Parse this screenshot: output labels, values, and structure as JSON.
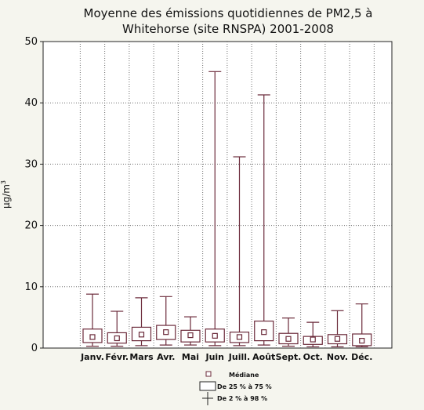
{
  "chart_data": {
    "type": "box",
    "title_lines": [
      "Moyenne des émissions quotidiennes de PM2,5 à",
      "Whitehorse (site RNSPA) 2001-2008"
    ],
    "ylabel": "µg/m",
    "ylabel_sup": "3",
    "ylim": [
      0,
      50
    ],
    "yticks": [
      "0",
      "10",
      "20",
      "30",
      "40",
      "50"
    ],
    "grid": true,
    "categories": [
      "Janv.",
      "Févr.",
      "Mars",
      "Avr.",
      "Mai",
      "Juin",
      "Juill.",
      "Août",
      "Sept.",
      "Oct.",
      "Nov.",
      "Déc."
    ],
    "median": [
      1.8,
      1.6,
      2.2,
      2.6,
      2.1,
      2.0,
      1.8,
      2.6,
      1.5,
      1.4,
      1.5,
      1.2
    ],
    "q25": [
      0.9,
      0.8,
      1.2,
      1.4,
      1.0,
      1.0,
      0.9,
      1.2,
      0.7,
      0.6,
      0.7,
      0.4
    ],
    "q75": [
      3.1,
      2.5,
      3.4,
      3.7,
      2.9,
      3.1,
      2.6,
      4.4,
      2.4,
      1.9,
      2.2,
      2.3
    ],
    "p2": [
      0.3,
      0.3,
      0.4,
      0.5,
      0.5,
      0.4,
      0.4,
      0.5,
      0.3,
      0.2,
      0.2,
      0.2
    ],
    "p98": [
      8.8,
      6.0,
      8.2,
      8.4,
      5.1,
      45.1,
      31.2,
      41.3,
      4.9,
      4.2,
      6.1,
      7.2
    ],
    "legend": {
      "median": "Médiane",
      "box": "De 25 % à 75 %",
      "whisker": "De 2 % à 98 %"
    },
    "colors": {
      "box": "#6b2a3a",
      "plot_bg": "#ffffff",
      "page_bg": "#f5f5ee",
      "grid": "#6e6e6e"
    }
  }
}
